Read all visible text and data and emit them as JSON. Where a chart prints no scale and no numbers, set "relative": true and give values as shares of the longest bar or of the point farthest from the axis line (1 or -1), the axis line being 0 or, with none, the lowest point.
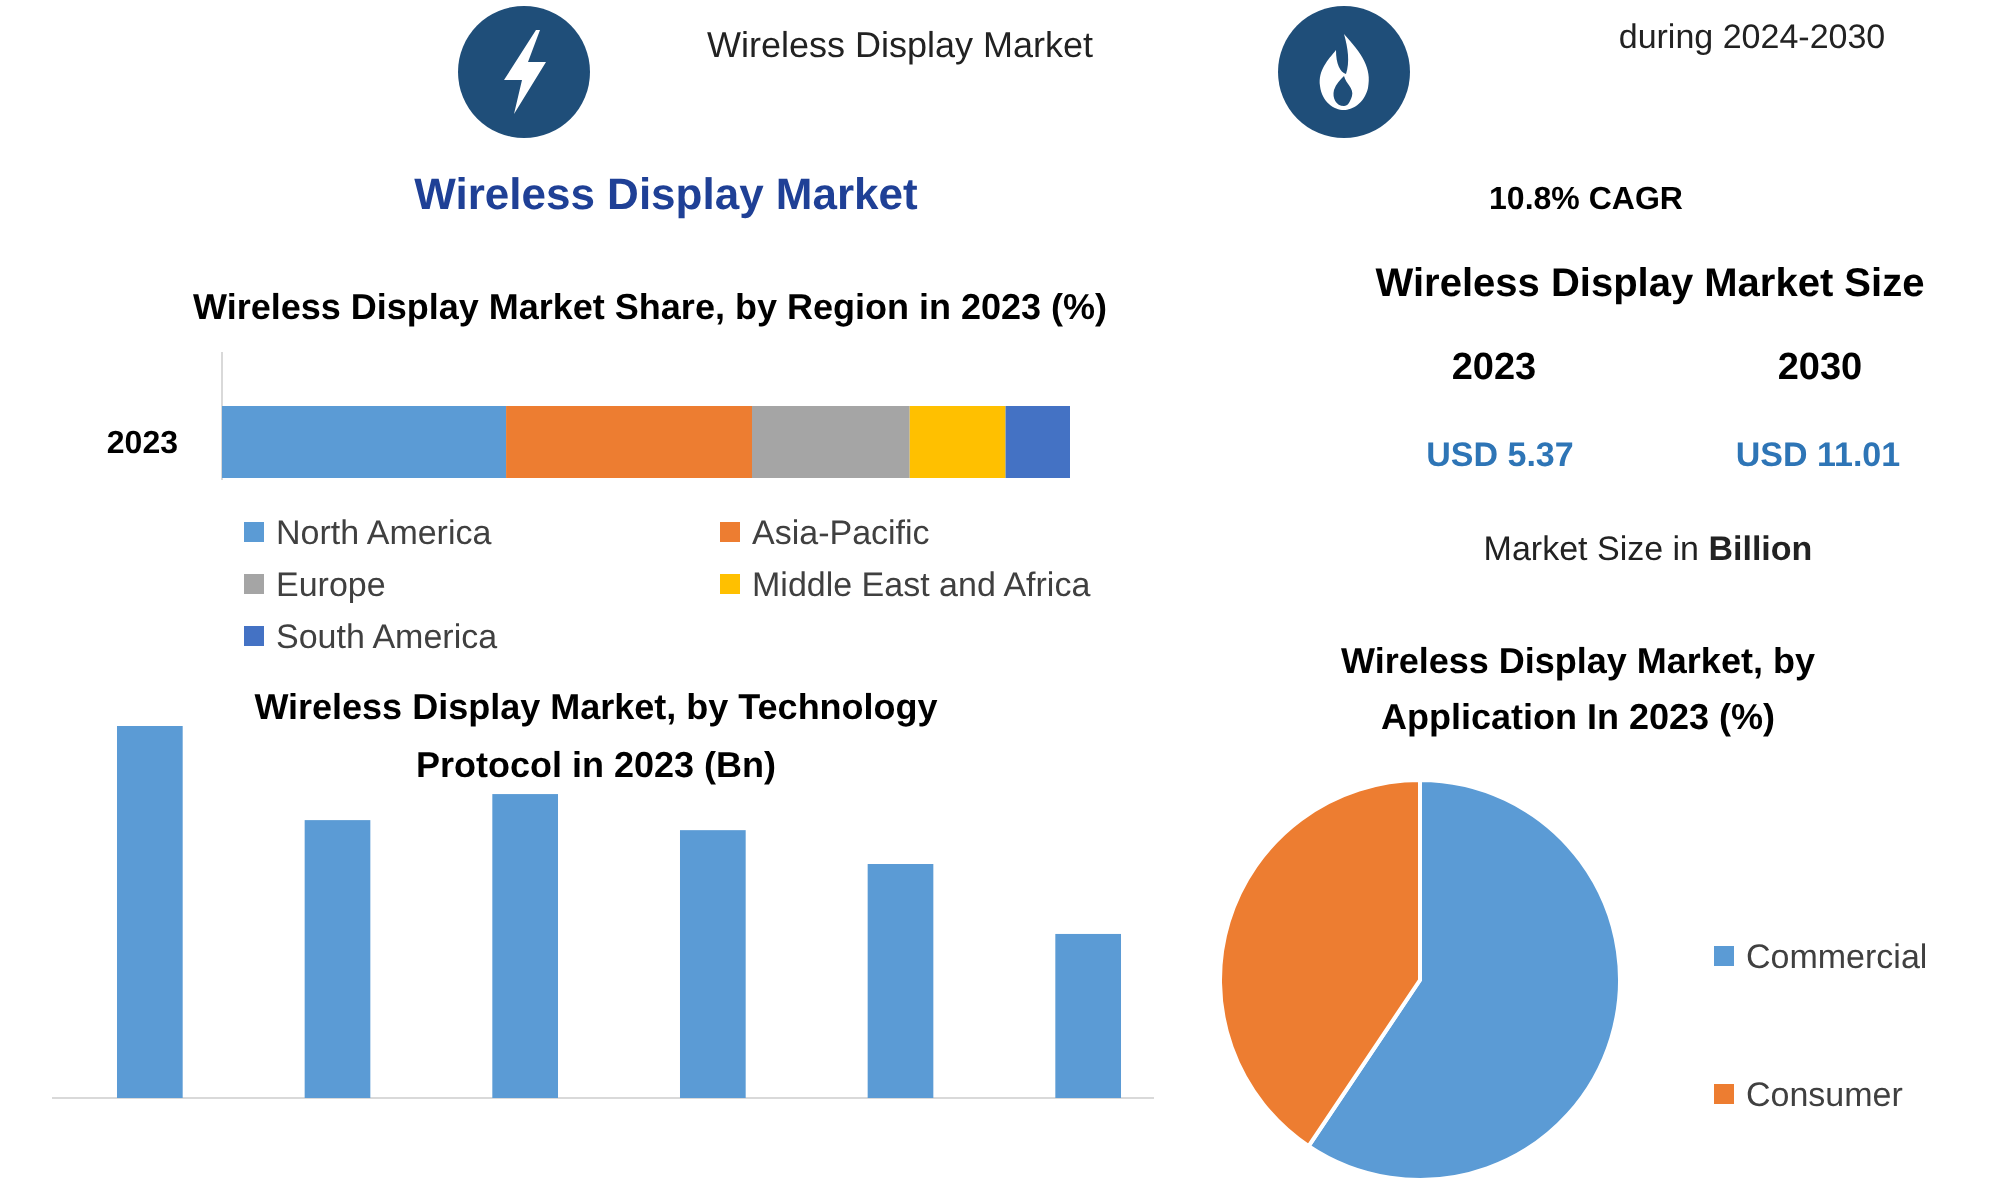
{
  "chart_data": [
    {
      "type": "other",
      "title": "Wireless Display Market",
      "annotations": [
        "Wireless Display Market",
        "during 2024-2030"
      ]
    },
    {
      "type": "bar",
      "orientation": "horizontal",
      "stacked": true,
      "relative": true,
      "title": "Wireless Display Market Share, by Region in 2023 (%)",
      "categories": [
        "2023"
      ],
      "series": [
        {
          "name": "North America",
          "color": "#5b9bd5",
          "values": [
            0.335
          ]
        },
        {
          "name": "Asia-Pacific",
          "color": "#ed7d31",
          "values": [
            0.29
          ]
        },
        {
          "name": "Europe",
          "color": "#a5a5a5",
          "values": [
            0.186
          ]
        },
        {
          "name": "Middle East and Africa",
          "color": "#ffc000",
          "values": [
            0.113
          ]
        },
        {
          "name": "South America",
          "color": "#4472c4",
          "values": [
            0.076
          ]
        }
      ],
      "legend": "bottom"
    },
    {
      "type": "other",
      "subtitle": "10.8% CAGR",
      "title": "Wireless Display Market Size",
      "annotations": [
        "2023",
        "2030",
        "USD 5.37",
        "USD 11.01",
        "Market Size in Billion"
      ]
    },
    {
      "type": "bar",
      "relative": true,
      "title": "Wireless Display Market, by Technology Protocol in 2023 (Bn)",
      "categories": [
        null,
        null,
        null,
        null,
        null,
        null
      ],
      "values": [
        1,
        0.747,
        0.817,
        0.72,
        0.629,
        0.441
      ],
      "color": "#5b9bd5"
    },
    {
      "type": "pie",
      "title": "Wireless Display Market, by Application In 2023 (%)",
      "categories": [
        "Commercial",
        "Consumer"
      ],
      "values": [
        59.4,
        40.6
      ],
      "colors": [
        "#5b9bd5",
        "#ed7d31"
      ],
      "legend": "right"
    }
  ]
}
